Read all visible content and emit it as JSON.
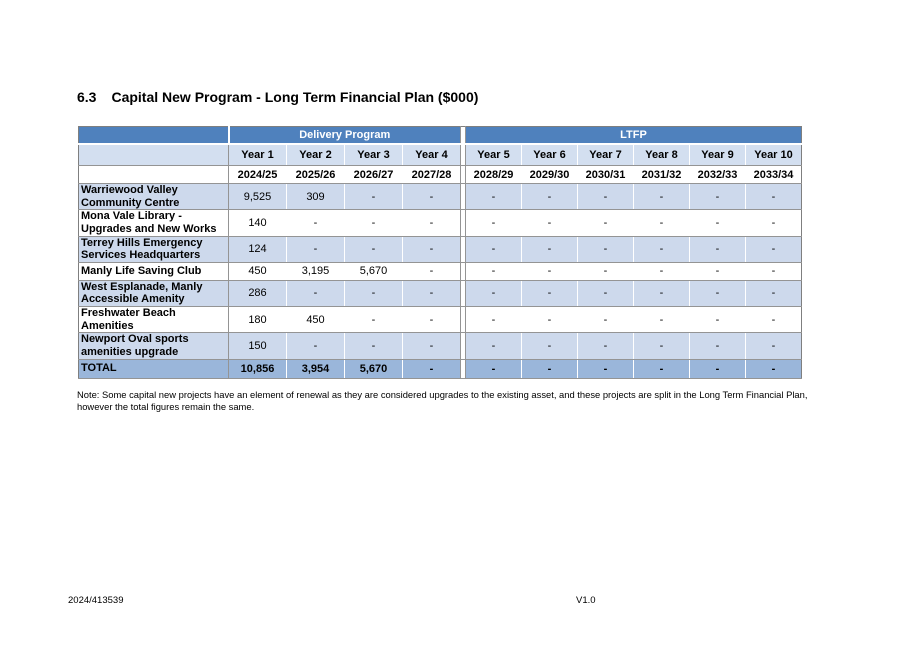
{
  "title": {
    "number": "6.3",
    "text": "Capital New Program - Long Term Financial Plan ($000)"
  },
  "table": {
    "band": {
      "delivery": "Delivery Program",
      "ltfp": "LTFP"
    },
    "year_headers": [
      "Year 1",
      "Year 2",
      "Year 3",
      "Year 4",
      "Year 5",
      "Year 6",
      "Year 7",
      "Year 8",
      "Year 9",
      "Year 10"
    ],
    "period_headers": [
      "2024/25",
      "2025/26",
      "2026/27",
      "2027/28",
      "2028/29",
      "2029/30",
      "2030/31",
      "2031/32",
      "2032/33",
      "2033/34"
    ],
    "rows": [
      {
        "label": "Warriewood Valley Community Centre",
        "values": [
          "9,525",
          "309",
          "-",
          "-",
          "-",
          "-",
          "-",
          "-",
          "-",
          "-"
        ]
      },
      {
        "label": "Mona Vale Library - Upgrades and New Works",
        "values": [
          "140",
          "-",
          "-",
          "-",
          "-",
          "-",
          "-",
          "-",
          "-",
          "-"
        ]
      },
      {
        "label": "Terrey Hills Emergency Services Headquarters",
        "values": [
          "124",
          "-",
          "-",
          "-",
          "-",
          "-",
          "-",
          "-",
          "-",
          "-"
        ]
      },
      {
        "label": "Manly Life Saving Club",
        "values": [
          "450",
          "3,195",
          "5,670",
          "-",
          "-",
          "-",
          "-",
          "-",
          "-",
          "-"
        ]
      },
      {
        "label": "West Esplanade, Manly Accessible Amenity",
        "values": [
          "286",
          "-",
          "-",
          "-",
          "-",
          "-",
          "-",
          "-",
          "-",
          "-"
        ]
      },
      {
        "label": "Freshwater Beach Amenities",
        "values": [
          "180",
          "450",
          "-",
          "-",
          "-",
          "-",
          "-",
          "-",
          "-",
          "-"
        ]
      },
      {
        "label": "Newport Oval sports amenities upgrade",
        "values": [
          "150",
          "-",
          "-",
          "-",
          "-",
          "-",
          "-",
          "-",
          "-",
          "-"
        ]
      }
    ],
    "total": {
      "label": "TOTAL",
      "values": [
        "10,856",
        "3,954",
        "5,670",
        "-",
        "-",
        "-",
        "-",
        "-",
        "-",
        "-"
      ]
    }
  },
  "note": "Note: Some capital new projects have an element of renewal as they are considered upgrades to the existing asset, and these projects are split in the Long Term Financial Plan, however the total figures remain the same.",
  "footer": {
    "doc_ref": "2024/413539",
    "version": "V1.0"
  },
  "colors": {
    "band_blue": "#4f81bd",
    "header_light_blue": "#d3dff0",
    "row_light_blue": "#cdd9ec",
    "total_blue": "#9ab6da"
  }
}
